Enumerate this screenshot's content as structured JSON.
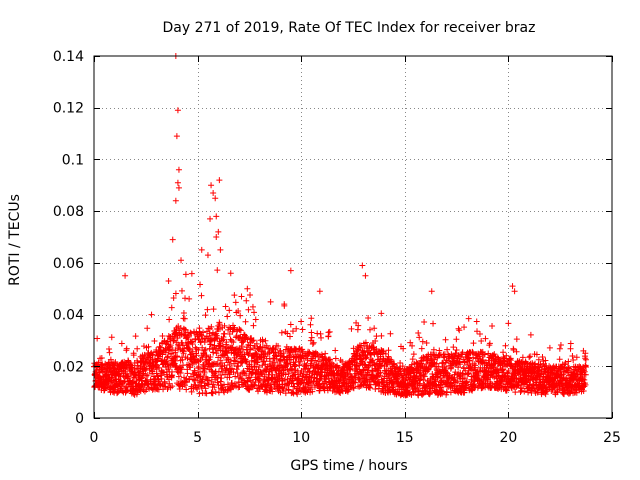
{
  "chart_data": {
    "type": "scatter",
    "title": "Day 271 of 2019, Rate Of TEC Index for receiver braz",
    "xlabel": "GPS time / hours",
    "ylabel": "ROTI / TECUs",
    "xlim": [
      0,
      25
    ],
    "ylim": [
      0,
      0.14
    ],
    "x_ticks": [
      0,
      5,
      10,
      15,
      20,
      25
    ],
    "x_tick_labels": [
      "0",
      "5",
      "10",
      "15",
      "20",
      "25"
    ],
    "y_ticks": [
      0,
      0.02,
      0.04,
      0.06,
      0.08,
      0.1,
      0.12,
      0.14
    ],
    "y_tick_labels": [
      "0",
      "0.02",
      "0.04",
      "0.06",
      "0.08",
      "0.1",
      "0.12",
      "0.14"
    ],
    "grid": true,
    "marker": "+",
    "marker_color": "#ff0000",
    "background_color": "#ffffff",
    "series": [
      {
        "name": "ROTI",
        "x_range": [
          0,
          23.75
        ],
        "sampling_interval_hours": 0.02,
        "baseline_envelope": [
          [
            0,
            0.016
          ],
          [
            1,
            0.015
          ],
          [
            2,
            0.015
          ],
          [
            3,
            0.018
          ],
          [
            4,
            0.022
          ],
          [
            5,
            0.02
          ],
          [
            6,
            0.022
          ],
          [
            7,
            0.022
          ],
          [
            8,
            0.018
          ],
          [
            9,
            0.018
          ],
          [
            10,
            0.017
          ],
          [
            11,
            0.017
          ],
          [
            12,
            0.014
          ],
          [
            13,
            0.02
          ],
          [
            14,
            0.017
          ],
          [
            15,
            0.013
          ],
          [
            16,
            0.016
          ],
          [
            17,
            0.016
          ],
          [
            18,
            0.017
          ],
          [
            19,
            0.018
          ],
          [
            20,
            0.016
          ],
          [
            21,
            0.015
          ],
          [
            22,
            0.014
          ],
          [
            23,
            0.014
          ],
          [
            23.75,
            0.015
          ]
        ],
        "spread_envelope": [
          [
            0,
            0.005
          ],
          [
            3,
            0.008
          ],
          [
            4,
            0.012
          ],
          [
            5,
            0.012
          ],
          [
            6,
            0.014
          ],
          [
            7,
            0.012
          ],
          [
            8,
            0.009
          ],
          [
            10,
            0.009
          ],
          [
            11,
            0.007
          ],
          [
            12,
            0.005
          ],
          [
            13,
            0.009
          ],
          [
            14,
            0.008
          ],
          [
            15,
            0.005
          ],
          [
            16,
            0.008
          ],
          [
            18,
            0.008
          ],
          [
            19,
            0.007
          ],
          [
            21,
            0.006
          ],
          [
            23.75,
            0.005
          ]
        ],
        "peak_points": [
          {
            "x": 3.95,
            "y": 0.14
          },
          {
            "x": 4.05,
            "y": 0.119
          },
          {
            "x": 4.0,
            "y": 0.109
          },
          {
            "x": 4.1,
            "y": 0.096
          },
          {
            "x": 4.05,
            "y": 0.091
          },
          {
            "x": 4.1,
            "y": 0.089
          },
          {
            "x": 3.95,
            "y": 0.084
          },
          {
            "x": 5.65,
            "y": 0.09
          },
          {
            "x": 6.05,
            "y": 0.092
          },
          {
            "x": 5.75,
            "y": 0.087
          },
          {
            "x": 5.85,
            "y": 0.085
          },
          {
            "x": 5.9,
            "y": 0.078
          },
          {
            "x": 5.6,
            "y": 0.077
          },
          {
            "x": 6.0,
            "y": 0.072
          },
          {
            "x": 3.8,
            "y": 0.069
          },
          {
            "x": 5.9,
            "y": 0.07
          },
          {
            "x": 6.1,
            "y": 0.065
          },
          {
            "x": 5.2,
            "y": 0.065
          },
          {
            "x": 5.5,
            "y": 0.063
          },
          {
            "x": 9.5,
            "y": 0.057
          },
          {
            "x": 12.95,
            "y": 0.059
          },
          {
            "x": 1.5,
            "y": 0.055
          },
          {
            "x": 20.2,
            "y": 0.051
          },
          {
            "x": 20.3,
            "y": 0.049
          },
          {
            "x": 16.3,
            "y": 0.049
          },
          {
            "x": 3.6,
            "y": 0.053
          },
          {
            "x": 13.1,
            "y": 0.055
          },
          {
            "x": 4.2,
            "y": 0.061
          },
          {
            "x": 6.6,
            "y": 0.056
          },
          {
            "x": 10.9,
            "y": 0.049
          },
          {
            "x": 7.4,
            "y": 0.05
          }
        ]
      }
    ]
  }
}
